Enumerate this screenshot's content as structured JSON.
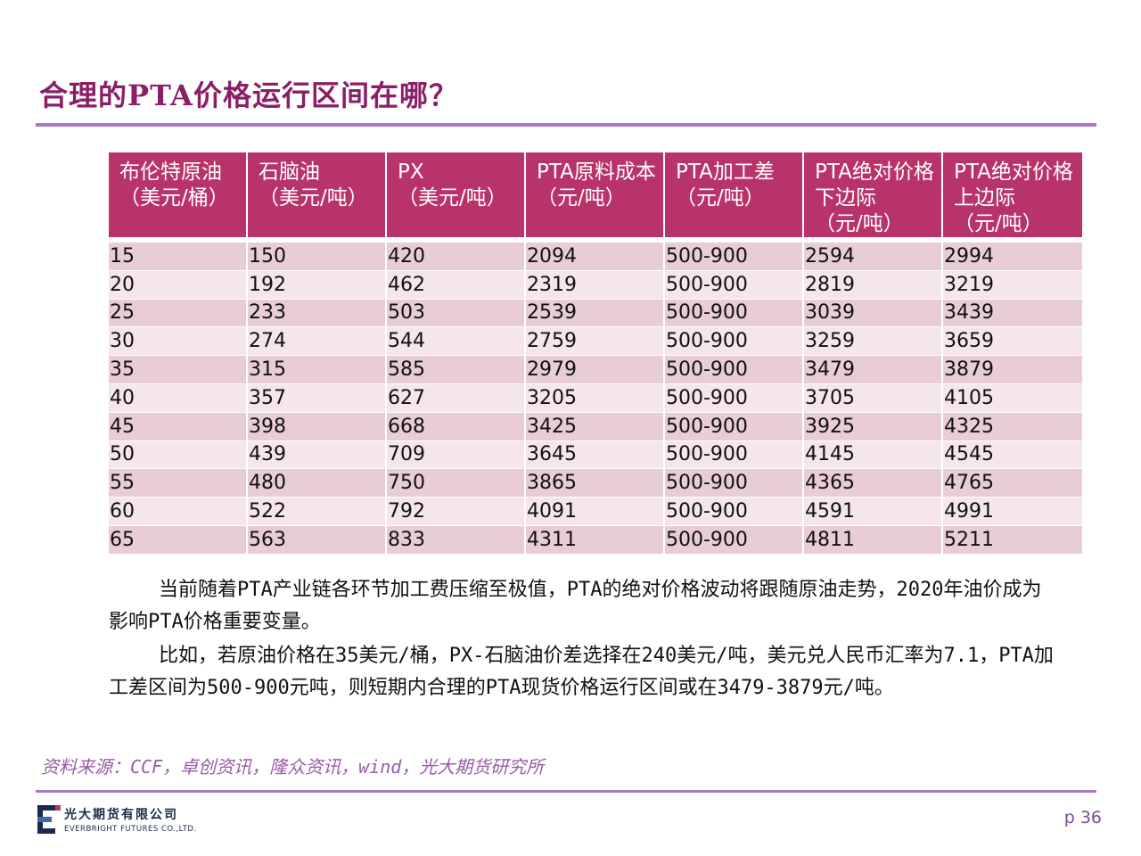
{
  "title": "合理的PTA价格运行区间在哪？",
  "table": {
    "headers": [
      "布伦特原油\n（美元/桶）",
      "石脑油\n（美元/吨）",
      "PX\n（美元/吨）",
      "PTA原料成本\n（元/吨）",
      "PTA加工差\n（元/吨）",
      "PTA绝对价格下边际\n（元/吨）",
      "PTA绝对价格上边际\n（元/吨）"
    ],
    "rows": [
      [
        "15",
        "150",
        "420",
        "2094",
        "500-900",
        "2594",
        "2994"
      ],
      [
        "20",
        "192",
        "462",
        "2319",
        "500-900",
        "2819",
        "3219"
      ],
      [
        "25",
        "233",
        "503",
        "2539",
        "500-900",
        "3039",
        "3439"
      ],
      [
        "30",
        "274",
        "544",
        "2759",
        "500-900",
        "3259",
        "3659"
      ],
      [
        "35",
        "315",
        "585",
        "2979",
        "500-900",
        "3479",
        "3879"
      ],
      [
        "40",
        "357",
        "627",
        "3205",
        "500-900",
        "3705",
        "4105"
      ],
      [
        "45",
        "398",
        "668",
        "3425",
        "500-900",
        "3925",
        "4325"
      ],
      [
        "50",
        "439",
        "709",
        "3645",
        "500-900",
        "4145",
        "4545"
      ],
      [
        "55",
        "480",
        "750",
        "3865",
        "500-900",
        "4365",
        "4765"
      ],
      [
        "60",
        "522",
        "792",
        "4091",
        "500-900",
        "4591",
        "4991"
      ],
      [
        "65",
        "563",
        "833",
        "4311",
        "500-900",
        "4811",
        "5211"
      ]
    ]
  },
  "paragraphs": [
    "当前随着PTA产业链各环节加工费压缩至极值，PTA的绝对价格波动将跟随原油走势，2020年油价成为影响PTA价格重要变量。",
    "比如，若原油价格在35美元/桶，PX-石脑油价差选择在240美元/吨，美元兑人民币汇率为7.1，PTA加工差区间为500-900元吨，则短期内合理的PTA现货价格运行区间或在3479-3879元/吨。"
  ],
  "source": "资料来源：CCF，卓创资讯，隆众资讯，wind，光大期货研究所",
  "footer": {
    "logo_cn": "光大期货有限公司",
    "logo_en": "EVERBRIGHT FUTURES CO.,LTD.",
    "page": "p 36"
  },
  "colors": {
    "title": "#8a1f66",
    "rule": "#a77ac8",
    "header_bg": "#b8336a",
    "row_odd": "#e8ccd6",
    "row_even": "#f4e6eb",
    "source": "#9a5aa8"
  }
}
